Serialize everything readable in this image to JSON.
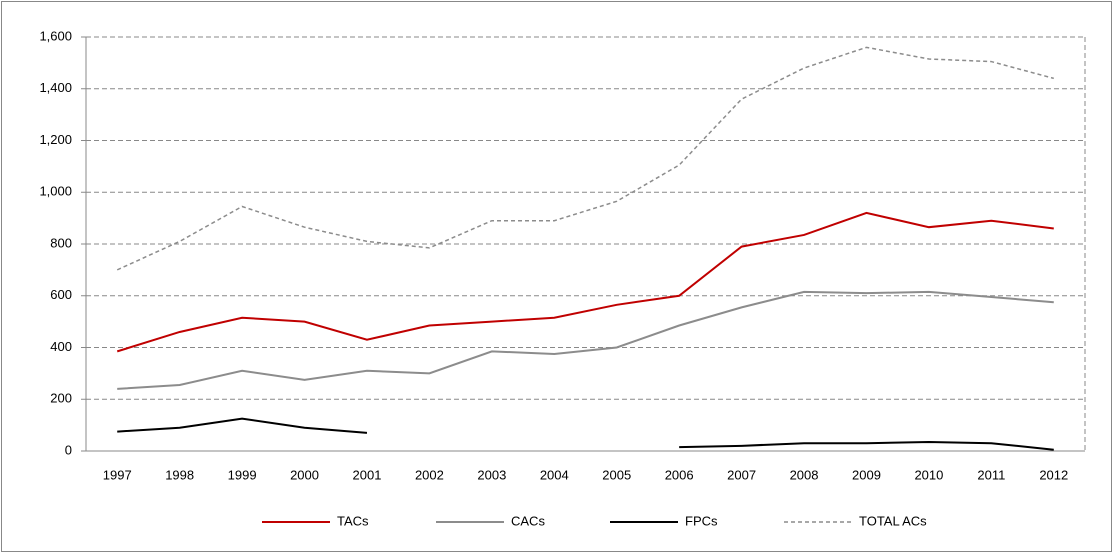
{
  "chart_data": {
    "type": "line",
    "categories": [
      "1997",
      "1998",
      "1999",
      "2000",
      "2001",
      "2002",
      "2003",
      "2004",
      "2005",
      "2006",
      "2007",
      "2008",
      "2009",
      "2010",
      "2011",
      "2012"
    ],
    "series": [
      {
        "name": "TACs",
        "color": "#c00000",
        "dash": false,
        "values": [
          385,
          460,
          515,
          500,
          430,
          485,
          500,
          515,
          565,
          600,
          790,
          835,
          920,
          865,
          890,
          860
        ]
      },
      {
        "name": "CACs",
        "color": "#8c8c8c",
        "dash": false,
        "values": [
          240,
          255,
          310,
          275,
          310,
          300,
          385,
          375,
          400,
          485,
          555,
          615,
          610,
          615,
          595,
          575
        ]
      },
      {
        "name": "FPCs",
        "color": "#000000",
        "dash": false,
        "values": [
          75,
          90,
          125,
          90,
          70,
          null,
          null,
          null,
          null,
          15,
          20,
          30,
          30,
          35,
          30,
          5
        ]
      },
      {
        "name": "TOTAL ACs",
        "color": "#8c8c8c",
        "dash": true,
        "values": [
          700,
          810,
          945,
          865,
          810,
          785,
          890,
          890,
          965,
          1105,
          1360,
          1480,
          1560,
          1515,
          1505,
          1440
        ]
      }
    ],
    "ylim": [
      0,
      1600
    ],
    "yticks": [
      0,
      200,
      400,
      600,
      800,
      {
        "value": 1000,
        "label": "1,000"
      },
      {
        "value": 1200,
        "label": "1,200"
      },
      {
        "value": 1400,
        "label": "1,400"
      },
      {
        "value": 1600,
        "label": "1,600"
      }
    ],
    "grid": true,
    "legend": "bottom"
  }
}
